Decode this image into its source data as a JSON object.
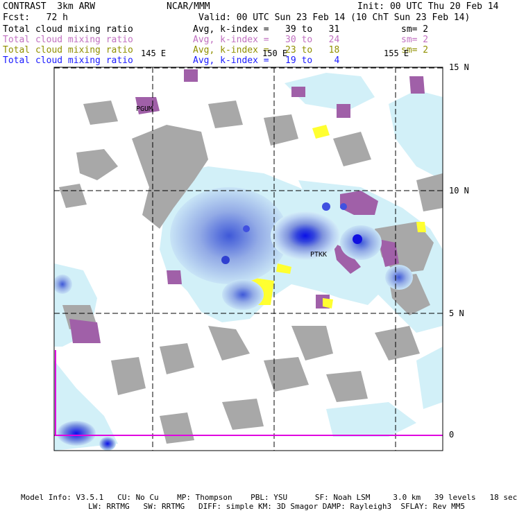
{
  "header": {
    "model": "CONTRAST  3km ARW",
    "center": "NCAR/MMM",
    "init": "Init: 00 UTC Thu 20 Feb 14",
    "fcst": "Fcst:   72 h",
    "valid": "Valid: 00 UTC Sun 23 Feb 14 (10 ChT Sun 23 Feb 14)"
  },
  "legend": [
    {
      "label": "Total cloud mixing ratio",
      "range": "Avg, k-index =   39 to   31",
      "sm": "sm= 2",
      "color": "#000000"
    },
    {
      "label": "Total cloud mixing ratio",
      "range": "Avg, k-index =   30 to   24",
      "sm": "sm= 2",
      "color": "#c070c0"
    },
    {
      "label": "Total cloud mixing ratio",
      "range": "Avg, k-index =   23 to   18",
      "sm": "sm= 2",
      "color": "#909000"
    },
    {
      "label": "Total cloud mixing ratio",
      "range": "Avg, k-index =   19 to    4",
      "sm": "",
      "color": "#1a1aff"
    }
  ],
  "map": {
    "lon_labels": [
      "145 E",
      "150 E",
      "155 E"
    ],
    "lat_labels": [
      "15 N",
      "10 N",
      "5 N",
      "0"
    ],
    "stations": [
      "PGUM",
      "PTKK"
    ]
  },
  "footer": {
    "line1": "Model Info: V3.5.1   CU: No Cu    MP: Thompson    PBL: YSU      SF: Noah LSM     3.0 km   39 levels   18 sec",
    "line2": "LW: RRTMG   SW: RRTMG   DIFF: simple KM: 3D Smagor DAMP: Rayleigh3  SFLAY: Rev MM5"
  }
}
